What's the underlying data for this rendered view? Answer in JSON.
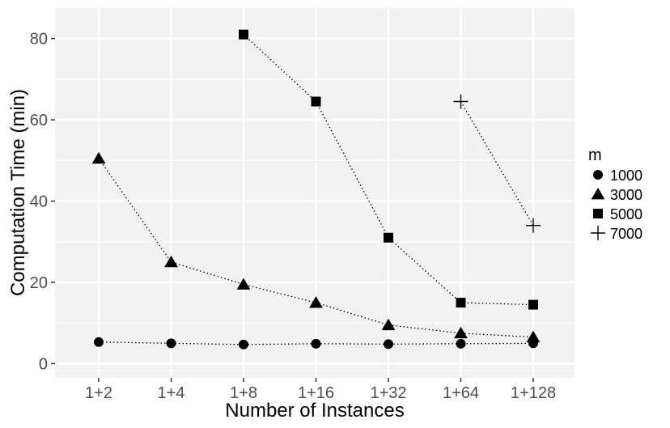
{
  "chart_data": {
    "type": "line",
    "xlabel": "Number of Instances",
    "ylabel": "Computation Time (min)",
    "categories": [
      "1+2",
      "1+4",
      "1+8",
      "1+16",
      "1+32",
      "1+64",
      "1+128"
    ],
    "ylim": [
      -3.5,
      87.5
    ],
    "yticks": [
      0,
      20,
      40,
      60,
      80
    ],
    "grid": true,
    "legend_title": "m",
    "legend_position": "right",
    "series": [
      {
        "name": "1000",
        "marker": "circle",
        "values": [
          5.3,
          5.0,
          4.7,
          4.9,
          4.8,
          4.9,
          5.0
        ]
      },
      {
        "name": "3000",
        "marker": "triangle",
        "values": [
          50.5,
          25.0,
          19.5,
          15.0,
          9.5,
          7.5,
          6.5
        ]
      },
      {
        "name": "5000",
        "marker": "square",
        "values": [
          null,
          null,
          81.0,
          64.5,
          31.0,
          15.0,
          14.5
        ]
      },
      {
        "name": "7000",
        "marker": "plus",
        "values": [
          null,
          null,
          null,
          null,
          null,
          64.5,
          34.0
        ]
      }
    ],
    "colors": {
      "panel_background": "#f2f2f2",
      "grid": "#ffffff",
      "mark": "#000000",
      "tick_text": "#4d4d4d"
    }
  }
}
